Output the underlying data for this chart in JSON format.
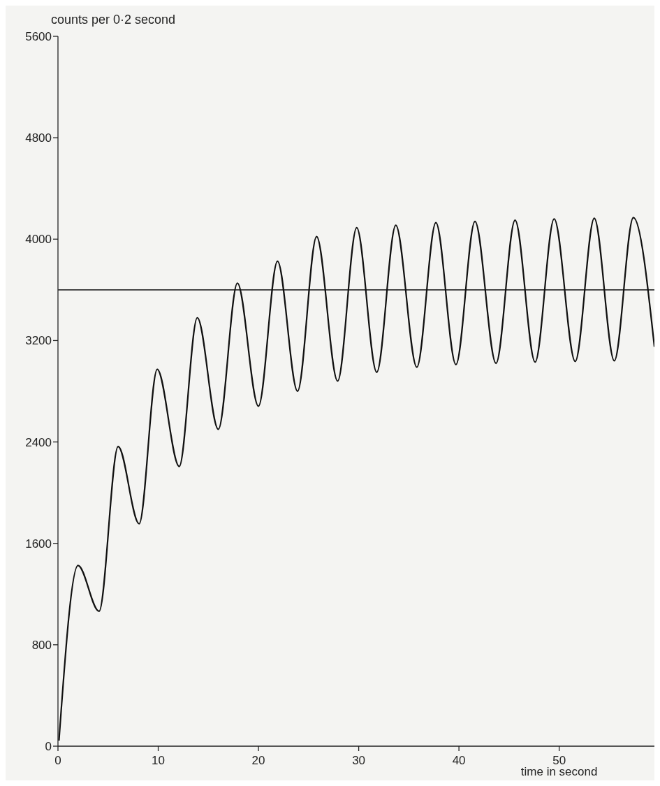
{
  "chart_data": {
    "type": "line",
    "ylabel": "counts per 0·2 second",
    "xlabel": "time in second",
    "xlim": [
      0,
      59.5
    ],
    "xticks": [
      0,
      10,
      20,
      30,
      40,
      50
    ],
    "ylim": [
      0,
      5600
    ],
    "yticks": [
      0,
      800,
      1600,
      2400,
      3200,
      4000,
      4800,
      5600
    ],
    "grid": false,
    "marker": "none",
    "line_style": "solid",
    "ref_lines": [
      {
        "axis": "y",
        "value": 3600,
        "color": "#333333"
      }
    ],
    "series": [
      {
        "color": "#111111",
        "x": [
          0.1,
          2.0,
          4.1,
          6.0,
          8.1,
          9.9,
          12.1,
          13.9,
          16.0,
          17.9,
          20.0,
          21.9,
          23.9,
          25.8,
          27.9,
          29.8,
          31.8,
          33.7,
          35.8,
          37.7,
          39.7,
          41.6,
          43.7,
          45.6,
          47.6,
          49.5,
          51.6,
          53.5,
          55.5,
          57.4,
          59.5
        ],
        "values": [
          44,
          1426,
          1064,
          2364,
          1755,
          2973,
          2207,
          3380,
          2500,
          3653,
          2682,
          3826,
          2800,
          4020,
          2880,
          4090,
          2950,
          4110,
          2990,
          4130,
          3010,
          4140,
          3020,
          4150,
          3030,
          4160,
          3035,
          4165,
          3040,
          4170,
          3150
        ]
      }
    ]
  }
}
